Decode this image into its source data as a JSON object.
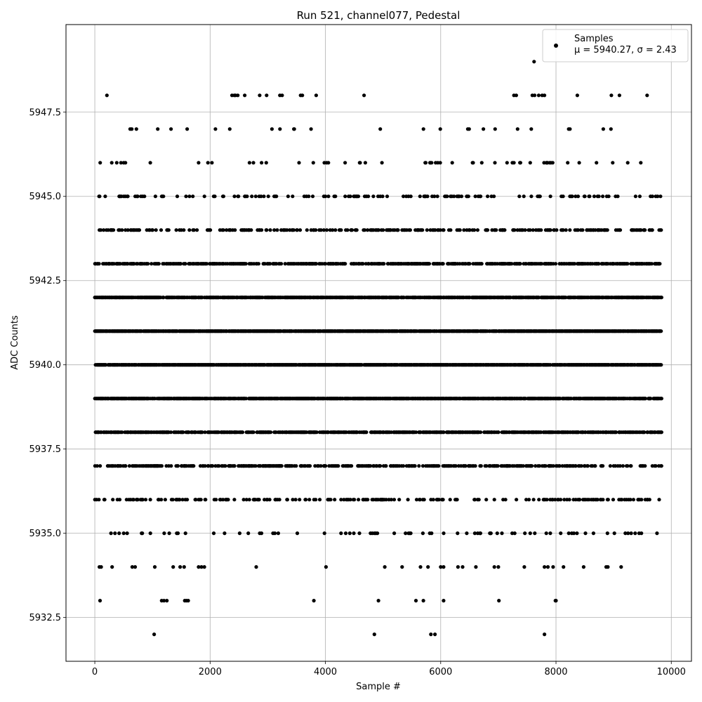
{
  "chart_data": {
    "type": "scatter",
    "title": "Run 521, channel077, Pedestal",
    "xlabel": "Sample #",
    "ylabel": "ADC Counts",
    "xlim": [
      -500,
      10350
    ],
    "ylim": [
      5931.2,
      5950.1
    ],
    "xticks": [
      0,
      2000,
      4000,
      6000,
      8000,
      10000
    ],
    "yticks": [
      5932.5,
      5935.0,
      5937.5,
      5940.0,
      5942.5,
      5945.0,
      5947.5
    ],
    "xtick_labels": [
      "0",
      "2000",
      "4000",
      "6000",
      "8000",
      "10000"
    ],
    "ytick_labels": [
      "5932.5",
      "5935.0",
      "5937.5",
      "5940.0",
      "5942.5",
      "5945.0",
      "5947.5"
    ],
    "grid": true,
    "legend_position": "top-right",
    "marker_color": "#000000",
    "series": [
      {
        "name": "Samples",
        "label_line2": "μ = 5940.27, σ = 2.43",
        "x_range": [
          0,
          9830
        ],
        "level_counts": [
          {
            "y": 5932,
            "x": [
              1030,
              4850,
              5830,
              5900,
              7800
            ]
          },
          {
            "y": 5933,
            "x": [
              90,
              1160,
              1200,
              1250,
              1560,
              1590,
              1620,
              3800,
              4920,
              5570,
              5700,
              6050,
              7010,
              7990,
              8000
            ]
          },
          {
            "y": 5934,
            "x": [
              80,
              110,
              300,
              650,
              700,
              1040,
              1360,
              1480,
              1550,
              1800,
              1850,
              1900,
              2800,
              4010,
              5030,
              5330,
              5650,
              5780,
              6000,
              6050,
              6300,
              6380,
              6610,
              6930,
              7000,
              7450,
              7800,
              7860,
              7950,
              8130,
              8480,
              8870,
              8900,
              9130
            ]
          },
          {
            "y": 5948,
            "x": 210,
            "list": [
              210,
              2380,
              2420,
              2440,
              2480,
              2600,
              2860,
              2980,
              3210,
              3250,
              3570,
              3600,
              3840,
              4670,
              7270,
              7310,
              7590,
              7630,
              7700,
              7760,
              7800,
              8370,
              8960,
              9100,
              9580
            ]
          },
          {
            "y": 5949,
            "x": [
              7620
            ]
          }
        ],
        "dense_levels": [
          5935,
          5936,
          5937,
          5938,
          5939,
          5940,
          5941,
          5942,
          5943,
          5944,
          5945,
          5946,
          5947
        ]
      }
    ]
  }
}
